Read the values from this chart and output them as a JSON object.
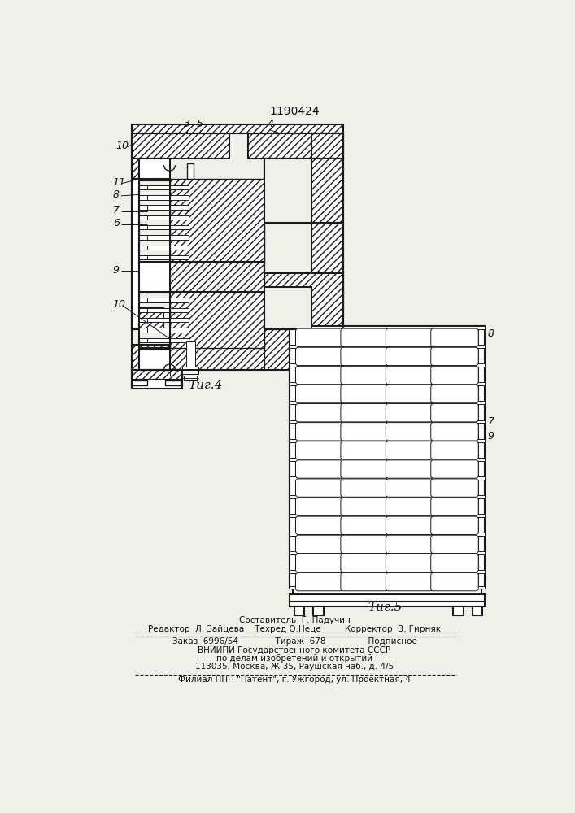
{
  "title": "1190424",
  "fig4_label": "Τиг.4",
  "fig5_label": "Τиг.5",
  "footer_lines": [
    "Составитель  Г. Падучин",
    "Редактор  Л. Зайцева    Техред О.Неце         Корректор  В. Гирняк",
    "Заказ  6996/54              Тираж  678                Подписное",
    "ВНИИПИ Государственного комитета СССР",
    "по делам изобретений и открытий",
    "113035, Москва, Ж-35, Раушская наб., д. 4/5",
    "Филиал ППП \"Патент\", г. Ужгород, ул. Проектная, 4"
  ],
  "bg_color": "#f0f0eb",
  "line_color": "#1a1a1a",
  "text_color": "#111111"
}
